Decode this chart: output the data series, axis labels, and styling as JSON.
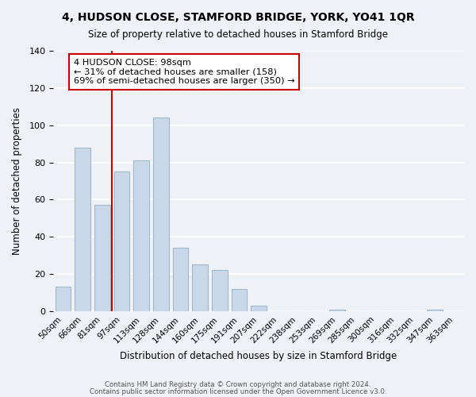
{
  "title": "4, HUDSON CLOSE, STAMFORD BRIDGE, YORK, YO41 1QR",
  "subtitle": "Size of property relative to detached houses in Stamford Bridge",
  "xlabel": "Distribution of detached houses by size in Stamford Bridge",
  "ylabel": "Number of detached properties",
  "bar_color": "#c8d8e8",
  "bar_edge_color": "#a0b8cc",
  "bins": [
    "50sqm",
    "66sqm",
    "81sqm",
    "97sqm",
    "113sqm",
    "128sqm",
    "144sqm",
    "160sqm",
    "175sqm",
    "191sqm",
    "207sqm",
    "222sqm",
    "238sqm",
    "253sqm",
    "269sqm",
    "285sqm",
    "300sqm",
    "316sqm",
    "332sqm",
    "347sqm",
    "363sqm"
  ],
  "values": [
    13,
    88,
    57,
    75,
    81,
    104,
    34,
    25,
    22,
    12,
    3,
    0,
    0,
    0,
    1,
    0,
    0,
    0,
    0,
    1,
    0
  ],
  "ylim": [
    0,
    140
  ],
  "yticks": [
    0,
    20,
    40,
    60,
    80,
    100,
    120,
    140
  ],
  "annotation_box_text": "4 HUDSON CLOSE: 98sqm\n← 31% of detached houses are smaller (158)\n69% of semi-detached houses are larger (350) →",
  "vline_color": "#cc0000",
  "footer1": "Contains HM Land Registry data © Crown copyright and database right 2024.",
  "footer2": "Contains public sector information licensed under the Open Government Licence v3.0.",
  "background_color": "#eef2f7",
  "grid_color": "#ffffff",
  "annotation_box_edge_color": "#cc0000",
  "annotation_box_face_color": "#ffffff"
}
